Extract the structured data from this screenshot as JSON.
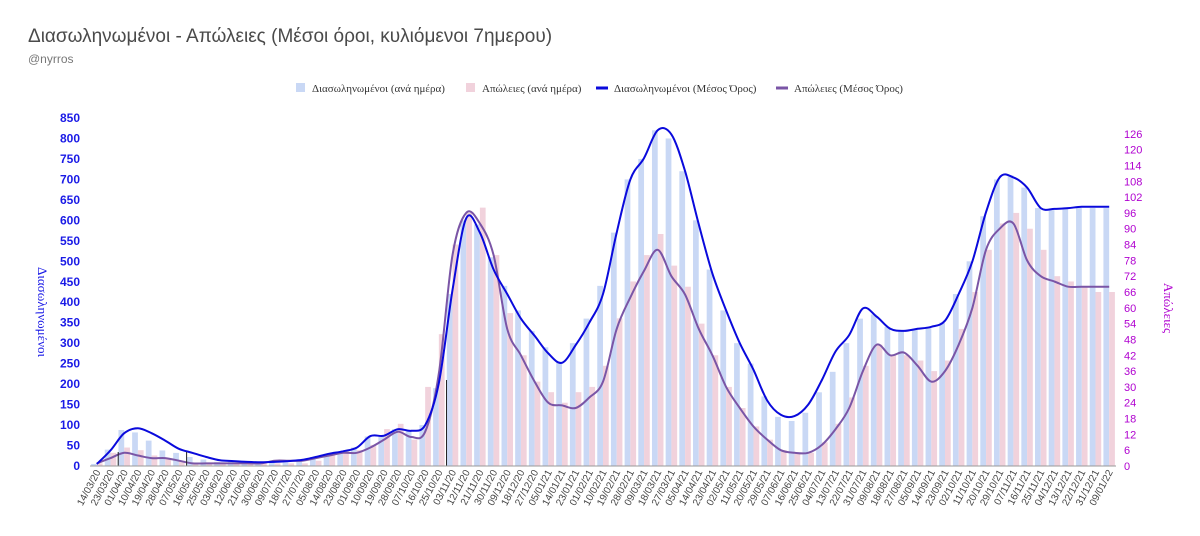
{
  "title": "Διασωληνωμένοι - Απώλειες (Μέσοι όροι, κυλιόμενοι 7ημερου)",
  "subtitle": "@nyrros",
  "colors": {
    "intubated_daily": "#c9d8f5",
    "deaths_daily": "#f1d2dc",
    "intubated_avg": "#0a0adc",
    "deaths_avg": "#7a55a6",
    "left_axis": "#1a1ae6",
    "right_axis": "#b000d0"
  },
  "chart_data": {
    "type": "bar",
    "title": "Διασωληνωμένοι - Απώλειες (Μέσοι όροι, κυλιόμενοι 7ημερου)",
    "ylabel": "Διασωληνωμένοι",
    "y2label": "Απώλειες",
    "ylim": [
      0,
      850
    ],
    "y2lim": [
      0,
      132
    ],
    "yticks": [
      0,
      50,
      100,
      150,
      200,
      250,
      300,
      350,
      400,
      450,
      500,
      550,
      600,
      650,
      700,
      750,
      800,
      850
    ],
    "y2ticks": [
      0,
      6,
      12,
      18,
      24,
      30,
      36,
      42,
      48,
      54,
      60,
      66,
      72,
      78,
      84,
      90,
      96,
      102,
      108,
      114,
      120,
      126
    ],
    "legend_position": "top-center",
    "grid": false,
    "categories": [
      "14/03/20",
      "23/03/20",
      "01/04/20",
      "10/04/20",
      "19/04/20",
      "28/04/20",
      "07/05/20",
      "16/05/20",
      "25/05/20",
      "03/06/20",
      "12/06/20",
      "21/06/20",
      "30/06/20",
      "09/07/20",
      "18/07/20",
      "27/07/20",
      "05/08/20",
      "14/08/20",
      "23/08/20",
      "01/09/20",
      "10/09/20",
      "19/09/20",
      "28/09/20",
      "07/10/20",
      "16/10/20",
      "25/10/20",
      "03/11/20",
      "12/11/20",
      "21/11/20",
      "30/11/20",
      "09/12/20",
      "18/12/20",
      "27/12/20",
      "05/01/21",
      "14/01/21",
      "23/01/21",
      "01/02/21",
      "10/02/21",
      "19/02/21",
      "28/02/21",
      "09/03/21",
      "18/03/21",
      "27/03/21",
      "05/04/21",
      "14/04/21",
      "23/04/21",
      "02/05/21",
      "11/05/21",
      "20/05/21",
      "29/05/21",
      "07/06/21",
      "16/06/21",
      "25/06/21",
      "04/07/21",
      "13/07/21",
      "22/07/21",
      "31/07/21",
      "09/08/21",
      "18/08/21",
      "27/08/21",
      "05/09/21",
      "14/09/21",
      "23/09/21",
      "02/10/21",
      "11/10/21",
      "20/10/21",
      "29/10/21",
      "07/11/21",
      "16/11/21",
      "25/11/21",
      "04/12/21",
      "13/12/21",
      "22/12/21",
      "31/12/21",
      "09/01/22"
    ],
    "series": [
      {
        "name": "Διασωληνωμένοι (ανά ημέρα)",
        "type": "bar",
        "axis": "left",
        "values": [
          5,
          40,
          88,
          82,
          62,
          38,
          32,
          22,
          16,
          10,
          12,
          10,
          10,
          10,
          9,
          12,
          22,
          30,
          35,
          45,
          72,
          75,
          90,
          85,
          100,
          190,
          420,
          600,
          590,
          510,
          440,
          380,
          330,
          290,
          255,
          300,
          360,
          440,
          570,
          700,
          750,
          820,
          800,
          720,
          600,
          480,
          380,
          300,
          250,
          170,
          120,
          110,
          130,
          180,
          230,
          300,
          360,
          370,
          340,
          330,
          335,
          340,
          350,
          420,
          500,
          610,
          700,
          710,
          680,
          630,
          625,
          630,
          630,
          630,
          630
        ]
      },
      {
        "name": "Απώλειες (ανά ημέρα)",
        "type": "bar",
        "axis": "right",
        "values": [
          1,
          5,
          7,
          6,
          4,
          3,
          2,
          1,
          1,
          1,
          1,
          1,
          1,
          1,
          1,
          1,
          2,
          4,
          6,
          6,
          8,
          14,
          16,
          10,
          30,
          50,
          84,
          96,
          98,
          80,
          58,
          42,
          32,
          28,
          24,
          28,
          30,
          38,
          56,
          70,
          80,
          88,
          76,
          68,
          54,
          42,
          30,
          22,
          15,
          10,
          6,
          5,
          5,
          9,
          16,
          26,
          38,
          46,
          42,
          42,
          40,
          36,
          40,
          52,
          66,
          82,
          92,
          96,
          90,
          82,
          72,
          70,
          68,
          66,
          66
        ]
      },
      {
        "name": "Διασωληνωμένοι (Μέσος Όρος)",
        "type": "line",
        "axis": "left",
        "values": [
          5,
          38,
          80,
          92,
          80,
          62,
          42,
          32,
          22,
          14,
          12,
          10,
          9,
          10,
          12,
          15,
          22,
          30,
          36,
          45,
          73,
          74,
          90,
          86,
          100,
          202,
          430,
          605,
          570,
          480,
          420,
          360,
          318,
          275,
          252,
          295,
          350,
          420,
          570,
          700,
          752,
          820,
          810,
          720,
          590,
          470,
          380,
          300,
          235,
          160,
          125,
          122,
          150,
          210,
          280,
          320,
          385,
          365,
          335,
          330,
          335,
          340,
          355,
          420,
          500,
          620,
          705,
          705,
          680,
          630,
          628,
          630,
          633,
          633,
          633
        ]
      },
      {
        "name": "Απώλειες (Μέσος Όρος)",
        "type": "line",
        "axis": "right",
        "values": [
          1,
          3,
          5,
          4,
          3,
          3,
          2,
          1,
          1,
          1,
          1,
          1,
          1,
          2,
          2,
          2,
          3,
          4,
          5,
          5,
          7,
          10,
          13,
          11,
          13,
          35,
          80,
          96,
          92,
          80,
          52,
          42,
          32,
          24,
          23,
          22,
          26,
          32,
          52,
          64,
          74,
          82,
          72,
          65,
          52,
          42,
          30,
          22,
          15,
          10,
          6,
          5,
          5,
          8,
          14,
          22,
          36,
          46,
          42,
          43,
          38,
          32,
          36,
          46,
          60,
          82,
          90,
          92,
          78,
          72,
          70,
          68,
          68,
          68,
          68
        ]
      }
    ]
  }
}
